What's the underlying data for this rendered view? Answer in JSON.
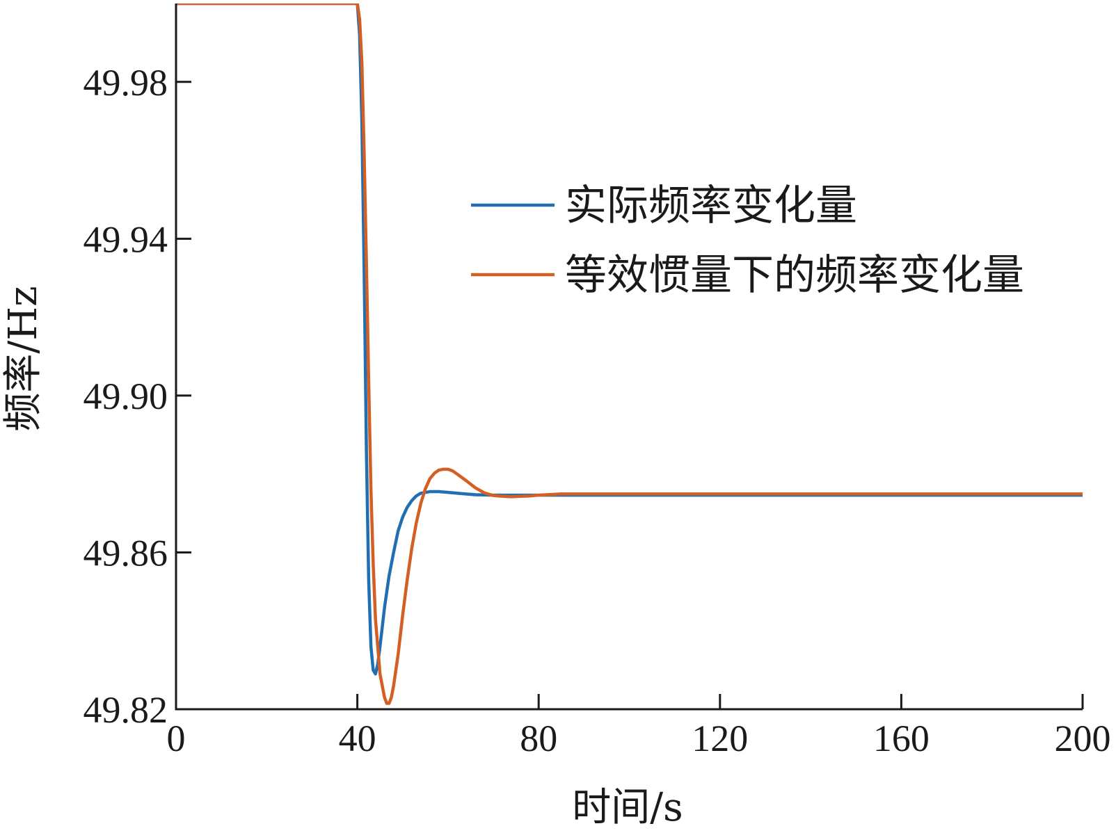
{
  "chart_data": {
    "type": "line",
    "xlabel": "时间/s",
    "ylabel": "频率/Hz",
    "xlim": [
      0,
      200
    ],
    "ylim": [
      49.82,
      50.0
    ],
    "xticks": [
      0,
      40,
      80,
      120,
      160,
      200
    ],
    "xtick_labels": [
      "0",
      "40",
      "80",
      "120",
      "160",
      "200"
    ],
    "yticks": [
      49.82,
      49.86,
      49.9,
      49.94,
      49.98
    ],
    "ytick_labels": [
      "49.82",
      "49.86",
      "49.90",
      "49.94",
      "49.98"
    ],
    "grid": false,
    "legend_position": "upper-right",
    "series": [
      {
        "name": "实际频率变化量",
        "color": "#1f6fb2",
        "x": [
          0,
          40,
          40.5,
          41,
          41.5,
          42,
          42.5,
          43,
          43.5,
          44,
          44.5,
          45,
          45.5,
          46,
          47,
          48,
          49,
          50,
          51,
          52,
          53,
          54,
          55,
          56,
          58,
          60,
          63,
          66,
          70,
          75,
          80,
          90,
          100,
          120,
          140,
          160,
          180,
          200
        ],
        "y": [
          50.0,
          50.0,
          49.992,
          49.97,
          49.932,
          49.886,
          49.853,
          49.836,
          49.83,
          49.829,
          49.8315,
          49.836,
          49.841,
          49.846,
          49.854,
          49.86,
          49.8655,
          49.869,
          49.8715,
          49.8732,
          49.8744,
          49.8751,
          49.8753,
          49.8755,
          49.8755,
          49.8753,
          49.875,
          49.8747,
          49.8746,
          49.8746,
          49.8746,
          49.8746,
          49.8746,
          49.8746,
          49.8746,
          49.8746,
          49.8746,
          49.8746
        ]
      },
      {
        "name": "等效惯量下的频率变化量",
        "color": "#d45f24",
        "x": [
          0,
          40,
          40.5,
          41,
          41.5,
          42,
          42.5,
          43,
          43.5,
          44,
          45,
          46,
          46.5,
          47,
          47.5,
          48,
          49,
          50,
          51,
          52,
          53,
          54,
          55,
          56,
          57,
          58,
          59,
          60,
          61,
          62,
          64,
          66,
          68,
          70,
          72,
          74,
          76,
          78,
          80,
          85,
          90,
          100,
          120,
          140,
          160,
          180,
          200
        ],
        "y": [
          50.0,
          50.0,
          49.996,
          49.985,
          49.962,
          49.934,
          49.904,
          49.876,
          49.857,
          49.843,
          49.829,
          49.823,
          49.8215,
          49.8215,
          49.823,
          49.826,
          49.834,
          49.844,
          49.853,
          49.861,
          49.8675,
          49.8725,
          49.8762,
          49.8788,
          49.8802,
          49.881,
          49.8812,
          49.8812,
          49.8808,
          49.88,
          49.8783,
          49.8765,
          49.8752,
          49.8745,
          49.8743,
          49.8742,
          49.8743,
          49.8744,
          49.8746,
          49.8749,
          49.8749,
          49.8749,
          49.8749,
          49.8749,
          49.8749,
          49.8749,
          49.8749
        ]
      }
    ]
  }
}
